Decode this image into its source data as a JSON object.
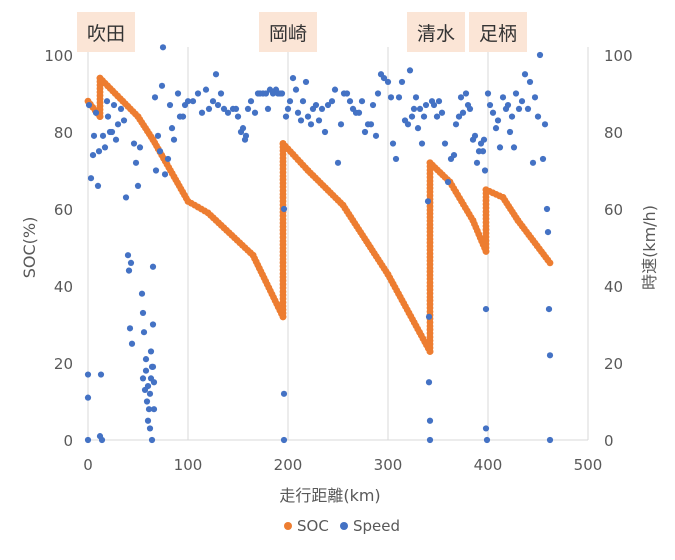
{
  "chart_data": {
    "type": "scatter",
    "title": "",
    "xlabel": "走行距離(km)",
    "ylabel_left": "SOC(%)",
    "ylabel_right": "時速(km/h)",
    "xlim": [
      0,
      500
    ],
    "ylim_left": [
      0,
      100
    ],
    "ylim_right": [
      0,
      100
    ],
    "x_ticks": [
      0,
      100,
      200,
      300,
      400,
      500
    ],
    "y_ticks": [
      0,
      20,
      40,
      60,
      80,
      100
    ],
    "grid": "vertical",
    "legend_position": "bottom",
    "colors": {
      "soc": "#ED7D31",
      "speed": "#4472C4",
      "place_label_bg": "#FBE5D6",
      "grid": "#D9D9D9",
      "axis_text": "#595959"
    },
    "place_labels": [
      {
        "name": "吹田",
        "x": 18
      },
      {
        "name": "岡崎",
        "x": 200
      },
      {
        "name": "清水",
        "x": 348
      },
      {
        "name": "足柄",
        "x": 410
      }
    ],
    "segments_soc": [
      {
        "x_start": 0,
        "x_end": 12,
        "y_start": 88,
        "y_end": 84
      },
      {
        "x_start": 12,
        "x_end": 12,
        "y_start": 84,
        "y_end": 94
      },
      {
        "x_start": 12,
        "x_end": 50,
        "y_start": 94,
        "y_end": 84
      },
      {
        "x_start": 50,
        "x_end": 65,
        "y_start": 84,
        "y_end": 78
      },
      {
        "x_start": 65,
        "x_end": 100,
        "y_start": 78,
        "y_end": 62
      },
      {
        "x_start": 100,
        "x_end": 120,
        "y_start": 62,
        "y_end": 59
      },
      {
        "x_start": 120,
        "x_end": 165,
        "y_start": 59,
        "y_end": 48
      },
      {
        "x_start": 165,
        "x_end": 195,
        "y_start": 48,
        "y_end": 32
      },
      {
        "x_start": 195,
        "x_end": 195,
        "y_start": 32,
        "y_end": 77
      },
      {
        "x_start": 195,
        "x_end": 220,
        "y_start": 77,
        "y_end": 70
      },
      {
        "x_start": 220,
        "x_end": 255,
        "y_start": 70,
        "y_end": 61
      },
      {
        "x_start": 255,
        "x_end": 300,
        "y_start": 61,
        "y_end": 43
      },
      {
        "x_start": 300,
        "x_end": 342,
        "y_start": 43,
        "y_end": 23
      },
      {
        "x_start": 342,
        "x_end": 342,
        "y_start": 23,
        "y_end": 72
      },
      {
        "x_start": 342,
        "x_end": 362,
        "y_start": 72,
        "y_end": 67
      },
      {
        "x_start": 362,
        "x_end": 385,
        "y_start": 67,
        "y_end": 57
      },
      {
        "x_start": 385,
        "x_end": 398,
        "y_start": 57,
        "y_end": 49
      },
      {
        "x_start": 398,
        "x_end": 398,
        "y_start": 49,
        "y_end": 65
      },
      {
        "x_start": 398,
        "x_end": 415,
        "y_start": 65,
        "y_end": 63
      },
      {
        "x_start": 415,
        "x_end": 430,
        "y_start": 63,
        "y_end": 57
      },
      {
        "x_start": 430,
        "x_end": 462,
        "y_start": 57,
        "y_end": 46
      }
    ],
    "series": [
      {
        "name": "SOC",
        "axis": "left",
        "marker": "circle"
      },
      {
        "name": "Speed",
        "axis": "right",
        "marker": "circle"
      }
    ],
    "speed_points": [
      [
        0,
        17
      ],
      [
        0,
        11
      ],
      [
        0,
        0
      ],
      [
        1,
        87
      ],
      [
        3,
        68
      ],
      [
        5,
        74
      ],
      [
        6,
        79
      ],
      [
        8,
        85
      ],
      [
        10,
        66
      ],
      [
        11,
        75
      ],
      [
        12,
        1
      ],
      [
        13,
        17
      ],
      [
        14,
        0
      ],
      [
        15,
        79
      ],
      [
        17,
        76
      ],
      [
        19,
        88
      ],
      [
        20,
        84
      ],
      [
        22,
        80
      ],
      [
        24,
        80
      ],
      [
        26,
        87
      ],
      [
        28,
        78
      ],
      [
        30,
        82
      ],
      [
        33,
        86
      ],
      [
        36,
        83
      ],
      [
        38,
        63
      ],
      [
        40,
        48
      ],
      [
        41,
        44
      ],
      [
        42,
        29
      ],
      [
        43,
        46
      ],
      [
        44,
        25
      ],
      [
        46,
        77
      ],
      [
        48,
        72
      ],
      [
        50,
        66
      ],
      [
        52,
        76
      ],
      [
        54,
        38
      ],
      [
        55,
        33
      ],
      [
        55,
        16
      ],
      [
        56,
        28
      ],
      [
        57,
        13
      ],
      [
        58,
        21
      ],
      [
        58,
        18
      ],
      [
        59,
        10
      ],
      [
        60,
        14
      ],
      [
        60,
        5
      ],
      [
        61,
        8
      ],
      [
        62,
        12
      ],
      [
        62,
        3
      ],
      [
        63,
        16
      ],
      [
        63,
        23
      ],
      [
        64,
        0
      ],
      [
        64,
        19
      ],
      [
        65,
        45
      ],
      [
        65,
        30
      ],
      [
        65,
        19
      ],
      [
        66,
        8
      ],
      [
        66,
        15
      ],
      [
        67,
        89
      ],
      [
        68,
        70
      ],
      [
        70,
        79
      ],
      [
        72,
        75
      ],
      [
        74,
        92
      ],
      [
        75,
        102
      ],
      [
        77,
        69
      ],
      [
        80,
        73
      ],
      [
        82,
        87
      ],
      [
        84,
        81
      ],
      [
        86,
        78
      ],
      [
        90,
        90
      ],
      [
        92,
        84
      ],
      [
        95,
        84
      ],
      [
        97,
        87
      ],
      [
        100,
        88
      ],
      [
        105,
        88
      ],
      [
        110,
        90
      ],
      [
        114,
        85
      ],
      [
        118,
        91
      ],
      [
        121,
        86
      ],
      [
        125,
        88
      ],
      [
        128,
        95
      ],
      [
        130,
        87
      ],
      [
        133,
        90
      ],
      [
        136,
        86
      ],
      [
        140,
        85
      ],
      [
        145,
        86
      ],
      [
        148,
        86
      ],
      [
        150,
        84
      ],
      [
        153,
        80
      ],
      [
        155,
        81
      ],
      [
        157,
        78
      ],
      [
        158,
        79
      ],
      [
        160,
        86
      ],
      [
        163,
        88
      ],
      [
        167,
        85
      ],
      [
        170,
        90
      ],
      [
        172,
        90
      ],
      [
        175,
        90
      ],
      [
        178,
        90
      ],
      [
        180,
        86
      ],
      [
        182,
        91
      ],
      [
        185,
        90
      ],
      [
        188,
        91
      ],
      [
        190,
        90
      ],
      [
        192,
        90
      ],
      [
        194,
        90
      ],
      [
        196,
        60
      ],
      [
        196,
        12
      ],
      [
        196,
        0
      ],
      [
        198,
        84
      ],
      [
        200,
        86
      ],
      [
        202,
        88
      ],
      [
        205,
        94
      ],
      [
        208,
        91
      ],
      [
        210,
        85
      ],
      [
        213,
        83
      ],
      [
        215,
        88
      ],
      [
        218,
        93
      ],
      [
        220,
        84
      ],
      [
        223,
        82
      ],
      [
        225,
        86
      ],
      [
        228,
        87
      ],
      [
        231,
        83
      ],
      [
        234,
        86
      ],
      [
        237,
        80
      ],
      [
        240,
        87
      ],
      [
        244,
        88
      ],
      [
        247,
        91
      ],
      [
        250,
        72
      ],
      [
        253,
        82
      ],
      [
        256,
        90
      ],
      [
        259,
        90
      ],
      [
        262,
        88
      ],
      [
        265,
        86
      ],
      [
        268,
        85
      ],
      [
        271,
        85
      ],
      [
        274,
        88
      ],
      [
        277,
        80
      ],
      [
        280,
        82
      ],
      [
        283,
        82
      ],
      [
        285,
        87
      ],
      [
        288,
        79
      ],
      [
        290,
        90
      ],
      [
        293,
        95
      ],
      [
        296,
        94
      ],
      [
        300,
        93
      ],
      [
        303,
        89
      ],
      [
        305,
        77
      ],
      [
        308,
        73
      ],
      [
        311,
        89
      ],
      [
        314,
        93
      ],
      [
        317,
        83
      ],
      [
        320,
        82
      ],
      [
        322,
        96
      ],
      [
        324,
        84
      ],
      [
        326,
        86
      ],
      [
        328,
        89
      ],
      [
        330,
        81
      ],
      [
        332,
        86
      ],
      [
        334,
        77
      ],
      [
        336,
        84
      ],
      [
        338,
        87
      ],
      [
        340,
        62
      ],
      [
        341,
        32
      ],
      [
        341,
        15
      ],
      [
        342,
        5
      ],
      [
        342,
        0
      ],
      [
        344,
        88
      ],
      [
        346,
        87
      ],
      [
        349,
        84
      ],
      [
        351,
        88
      ],
      [
        354,
        85
      ],
      [
        357,
        77
      ],
      [
        360,
        67
      ],
      [
        363,
        73
      ],
      [
        366,
        74
      ],
      [
        368,
        82
      ],
      [
        371,
        84
      ],
      [
        373,
        89
      ],
      [
        375,
        85
      ],
      [
        378,
        90
      ],
      [
        380,
        87
      ],
      [
        382,
        86
      ],
      [
        385,
        78
      ],
      [
        387,
        79
      ],
      [
        389,
        72
      ],
      [
        391,
        75
      ],
      [
        393,
        77
      ],
      [
        395,
        75
      ],
      [
        396,
        78
      ],
      [
        397,
        70
      ],
      [
        398,
        34
      ],
      [
        398,
        3
      ],
      [
        399,
        0
      ],
      [
        400,
        90
      ],
      [
        402,
        87
      ],
      [
        405,
        85
      ],
      [
        408,
        81
      ],
      [
        410,
        83
      ],
      [
        412,
        76
      ],
      [
        415,
        89
      ],
      [
        418,
        86
      ],
      [
        420,
        87
      ],
      [
        422,
        80
      ],
      [
        424,
        84
      ],
      [
        426,
        76
      ],
      [
        428,
        90
      ],
      [
        431,
        86
      ],
      [
        434,
        88
      ],
      [
        437,
        95
      ],
      [
        440,
        86
      ],
      [
        442,
        93
      ],
      [
        445,
        72
      ],
      [
        447,
        89
      ],
      [
        450,
        84
      ],
      [
        452,
        100
      ],
      [
        455,
        73
      ],
      [
        457,
        82
      ],
      [
        459,
        60
      ],
      [
        460,
        54
      ],
      [
        461,
        34
      ],
      [
        462,
        22
      ],
      [
        462,
        0
      ]
    ]
  },
  "legend": {
    "items": [
      "SOC",
      "Speed"
    ]
  }
}
